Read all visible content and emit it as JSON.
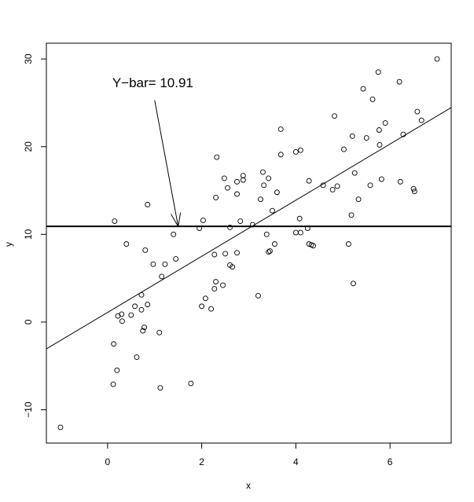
{
  "chart_data": {
    "type": "scatter",
    "xlabel": "x",
    "ylabel": "y",
    "xlim": [
      -1.3,
      7.3
    ],
    "ylim": [
      -13.8,
      31.8
    ],
    "x_ticks": [
      0,
      2,
      4,
      6
    ],
    "y_ticks": [
      -10,
      0,
      10,
      20,
      30
    ],
    "grid": false,
    "points": [
      [
        -1.0,
        -12.0
      ],
      [
        0.12,
        -7.1
      ],
      [
        0.2,
        -5.5
      ],
      [
        0.13,
        -2.5
      ],
      [
        0.62,
        -4.0
      ],
      [
        1.12,
        -7.5
      ],
      [
        1.77,
        -7.0
      ],
      [
        0.22,
        0.7
      ],
      [
        0.3,
        0.9
      ],
      [
        0.31,
        0.1
      ],
      [
        0.5,
        0.8
      ],
      [
        0.58,
        1.8
      ],
      [
        0.72,
        1.4
      ],
      [
        0.72,
        3.1
      ],
      [
        0.75,
        -1.0
      ],
      [
        0.78,
        -0.6
      ],
      [
        0.85,
        2.0
      ],
      [
        1.1,
        -1.2
      ],
      [
        0.4,
        8.9
      ],
      [
        0.8,
        8.2
      ],
      [
        0.97,
        6.6
      ],
      [
        1.15,
        5.2
      ],
      [
        1.22,
        6.6
      ],
      [
        1.45,
        7.2
      ],
      [
        1.4,
        10.0
      ],
      [
        0.85,
        13.4
      ],
      [
        0.15,
        11.5
      ],
      [
        1.95,
        10.7
      ],
      [
        2.03,
        11.6
      ],
      [
        2.0,
        1.8
      ],
      [
        2.08,
        2.7
      ],
      [
        2.2,
        1.5
      ],
      [
        2.27,
        3.8
      ],
      [
        2.3,
        4.6
      ],
      [
        2.27,
        7.7
      ],
      [
        2.3,
        14.2
      ],
      [
        2.32,
        18.8
      ],
      [
        2.45,
        4.2
      ],
      [
        2.48,
        16.4
      ],
      [
        2.5,
        7.8
      ],
      [
        2.55,
        15.3
      ],
      [
        2.6,
        6.5
      ],
      [
        2.65,
        6.3
      ],
      [
        2.6,
        10.8
      ],
      [
        2.75,
        16.0
      ],
      [
        2.75,
        14.6
      ],
      [
        2.75,
        7.9
      ],
      [
        2.82,
        11.5
      ],
      [
        2.88,
        16.7
      ],
      [
        2.88,
        16.2
      ],
      [
        3.08,
        11.1
      ],
      [
        3.2,
        3.0
      ],
      [
        3.25,
        14.0
      ],
      [
        3.3,
        17.1
      ],
      [
        3.32,
        15.6
      ],
      [
        3.38,
        10.0
      ],
      [
        3.42,
        16.4
      ],
      [
        3.42,
        8.0
      ],
      [
        3.45,
        8.1
      ],
      [
        3.5,
        12.7
      ],
      [
        3.55,
        8.9
      ],
      [
        3.6,
        14.8
      ],
      [
        3.68,
        22.0
      ],
      [
        3.68,
        19.1
      ],
      [
        4.0,
        19.4
      ],
      [
        4.0,
        10.2
      ],
      [
        4.08,
        11.8
      ],
      [
        4.1,
        10.2
      ],
      [
        4.1,
        19.6
      ],
      [
        4.25,
        10.7
      ],
      [
        4.28,
        16.1
      ],
      [
        4.28,
        8.9
      ],
      [
        4.33,
        8.8
      ],
      [
        4.37,
        8.7
      ],
      [
        4.58,
        15.6
      ],
      [
        4.78,
        15.1
      ],
      [
        4.82,
        23.5
      ],
      [
        4.88,
        15.5
      ],
      [
        5.02,
        19.7
      ],
      [
        5.12,
        8.9
      ],
      [
        5.18,
        12.2
      ],
      [
        5.2,
        21.2
      ],
      [
        5.22,
        4.4
      ],
      [
        5.25,
        17.0
      ],
      [
        5.33,
        14.0
      ],
      [
        5.43,
        26.6
      ],
      [
        5.5,
        21.0
      ],
      [
        5.58,
        15.6
      ],
      [
        5.63,
        25.4
      ],
      [
        5.75,
        28.5
      ],
      [
        5.77,
        21.9
      ],
      [
        5.78,
        20.2
      ],
      [
        5.82,
        16.3
      ],
      [
        5.9,
        22.7
      ],
      [
        6.2,
        27.4
      ],
      [
        6.22,
        16.0
      ],
      [
        6.28,
        21.4
      ],
      [
        6.5,
        15.2
      ],
      [
        6.52,
        14.9
      ],
      [
        6.58,
        24.0
      ],
      [
        6.67,
        23.0
      ],
      [
        7.0,
        30.0
      ]
    ],
    "regression_line": {
      "intercept": 1.1,
      "slope": 3.2
    },
    "hline": {
      "y": 10.91
    },
    "annotation": {
      "text": "Y−bar= 10.91",
      "text_at": [
        0.1,
        26.8
      ],
      "arrow_from": [
        1.0,
        25.3
      ],
      "arrow_to": [
        1.5,
        10.91
      ]
    }
  }
}
